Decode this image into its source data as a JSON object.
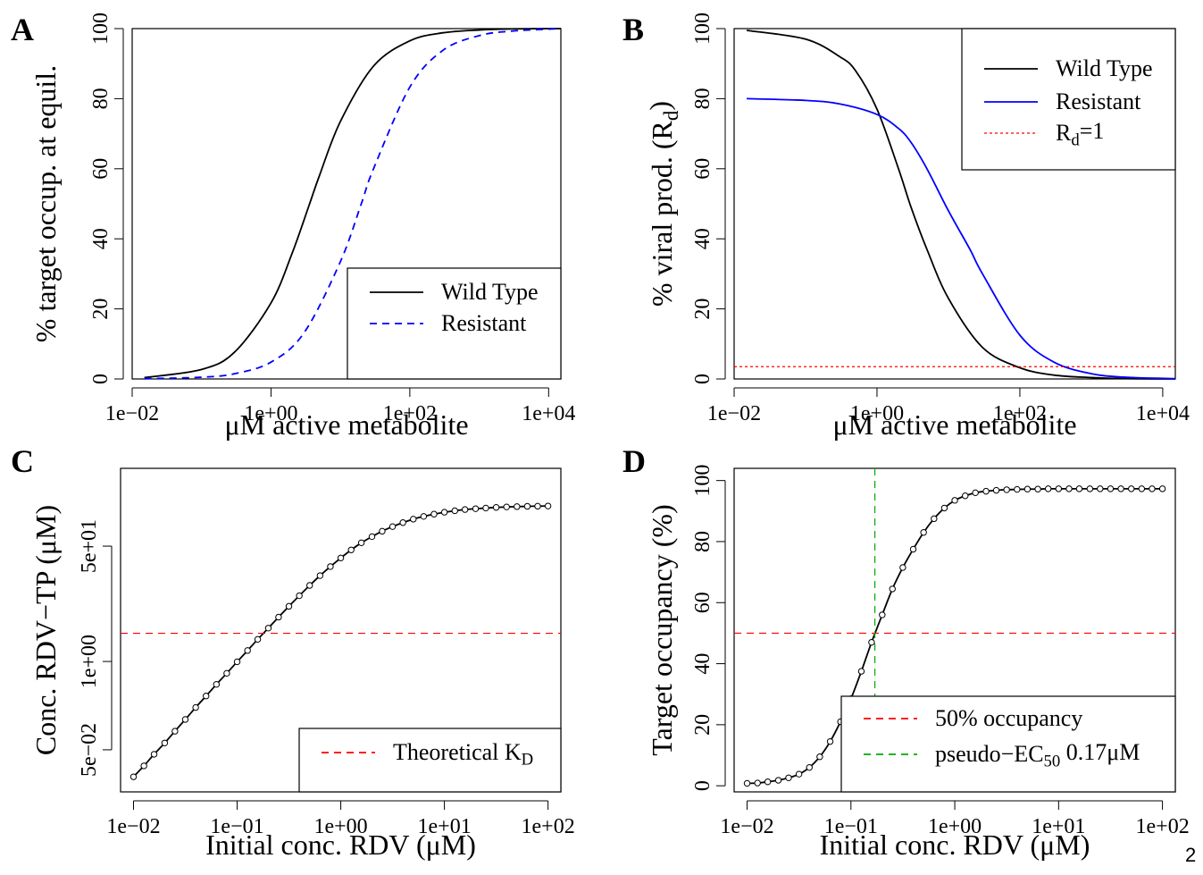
{
  "page_number": "2",
  "chart_data": [
    {
      "panel": "A",
      "type": "line",
      "xscale": "log",
      "xlabel": "μM active metabolite",
      "ylabel": "% target occup. at equil.",
      "xlim": [
        0.01,
        15000
      ],
      "ylim": [
        0,
        100
      ],
      "xticks": [
        0.01,
        1,
        100,
        10000
      ],
      "xtick_labels": [
        "1e−02",
        "1e+00",
        "1e+02",
        "1e+04"
      ],
      "yticks": [
        0,
        20,
        40,
        60,
        80,
        100
      ],
      "ytick_labels": [
        "0",
        "20",
        "40",
        "60",
        "80",
        "100"
      ],
      "legend_position": "bottom-right",
      "series": [
        {
          "name": "Wild Type",
          "color": "#000000",
          "dash": "solid",
          "x": [
            0.015,
            0.1,
            0.3,
            1,
            2,
            3.5,
            5,
            10,
            30,
            100,
            300,
            1000,
            3000,
            15000
          ],
          "y": [
            0.4,
            2.7,
            7.7,
            21.7,
            35.7,
            49.3,
            58.1,
            73.5,
            89.3,
            96.5,
            98.8,
            99.6,
            99.9,
            100
          ]
        },
        {
          "name": "Resistant",
          "color": "#0000ff",
          "dash": "dashed",
          "x": [
            0.015,
            0.1,
            0.3,
            1,
            3,
            10,
            20,
            30,
            100,
            300,
            1000,
            3000,
            15000
          ],
          "y": [
            0.07,
            0.5,
            1.5,
            4.8,
            13.2,
            33.5,
            50.0,
            60.0,
            83.3,
            93.8,
            98.0,
            99.3,
            100
          ]
        }
      ]
    },
    {
      "panel": "B",
      "type": "line",
      "xscale": "log",
      "xlabel": "μM active metabolite",
      "ylabel": "% viral prod. (Rd)",
      "ylabel_main": "% viral prod. (R",
      "ylabel_sub": "d",
      "ylabel_end": ")",
      "xlim": [
        0.01,
        15000
      ],
      "ylim": [
        0,
        100
      ],
      "xticks": [
        0.01,
        1,
        100,
        10000
      ],
      "xtick_labels": [
        "1e−02",
        "1e+00",
        "1e+02",
        "1e+04"
      ],
      "yticks": [
        0,
        20,
        40,
        60,
        80,
        100
      ],
      "ytick_labels": [
        "0",
        "20",
        "40",
        "60",
        "80",
        "100"
      ],
      "legend_position": "top-right",
      "series": [
        {
          "name": "Wild Type",
          "color": "#000000",
          "dash": "solid",
          "x": [
            0.015,
            0.1,
            0.3,
            0.5,
            1,
            2,
            3,
            5,
            10,
            30,
            100,
            300,
            1000,
            3000,
            15000
          ],
          "y": [
            99.5,
            97.0,
            92.0,
            88.0,
            77.0,
            60.0,
            49.0,
            37.0,
            23.0,
            9.0,
            3.2,
            1.1,
            0.4,
            0.1,
            0.0
          ]
        },
        {
          "name": "Resistant",
          "color": "#0000ff",
          "dash": "solid",
          "x": [
            0.015,
            0.1,
            0.3,
            1,
            2,
            3,
            5,
            10,
            20,
            30,
            100,
            300,
            1000,
            3000,
            15000
          ],
          "y": [
            80.0,
            79.5,
            78.5,
            75.5,
            71.5,
            67.5,
            60.0,
            48.0,
            37.0,
            30.0,
            12.5,
            4.8,
            1.5,
            0.5,
            0.1
          ]
        },
        {
          "name": "Rd=1",
          "name_main": "R",
          "name_sub": "d",
          "name_end": "=1",
          "color": "#ff0000",
          "dash": "dotted",
          "type": "hline",
          "y": 3.5
        }
      ]
    },
    {
      "panel": "C",
      "type": "line",
      "xscale": "log",
      "yscale": "log",
      "xlabel": "Initial conc. RDV (μM)",
      "ylabel": "Conc. RDV−TP (μM)",
      "xlim": [
        0.0075,
        133
      ],
      "ylim": [
        0.012,
        700
      ],
      "xticks": [
        0.01,
        0.1,
        1,
        10,
        100
      ],
      "xtick_labels": [
        "1e−02",
        "1e−01",
        "1e+00",
        "1e+01",
        "1e+02"
      ],
      "yticks": [
        0.05,
        1,
        50
      ],
      "ytick_labels": [
        "5e−02",
        "1e+00",
        "5e+01"
      ],
      "legend_position": "bottom-right",
      "series": [
        {
          "name": "RDV−TP",
          "color": "#000000",
          "dash": "solid",
          "markers": "open-circle",
          "x": [
            0.01,
            0.0126,
            0.0158,
            0.02,
            0.0251,
            0.0316,
            0.0398,
            0.0501,
            0.0631,
            0.0794,
            0.1,
            0.126,
            0.158,
            0.2,
            0.251,
            0.316,
            0.398,
            0.501,
            0.631,
            0.794,
            1,
            1.26,
            1.58,
            2,
            2.51,
            3.16,
            3.98,
            5.01,
            6.31,
            7.94,
            10,
            12.6,
            15.8,
            20,
            25.1,
            31.6,
            39.8,
            50.1,
            63.1,
            79.4,
            100
          ],
          "y": [
            0.02,
            0.029,
            0.043,
            0.063,
            0.094,
            0.14,
            0.21,
            0.31,
            0.46,
            0.67,
            0.99,
            1.45,
            2.12,
            3.1,
            4.5,
            6.5,
            9.3,
            13.2,
            18.4,
            25,
            33.5,
            44,
            56,
            69,
            83,
            97,
            111,
            125,
            137,
            148,
            158,
            166,
            173,
            178,
            182,
            186,
            189,
            191,
            193,
            194,
            195
          ]
        },
        {
          "name": "Theoretical KD",
          "name_main": "Theoretical K",
          "name_sub": "D",
          "color": "#ff0000",
          "dash": "dashed",
          "type": "hline",
          "y": 2.6
        }
      ]
    },
    {
      "panel": "D",
      "type": "line",
      "xscale": "log",
      "xlabel": "Initial conc. RDV (μM)",
      "ylabel": "Target occupancy (%)",
      "xlim": [
        0.0075,
        133
      ],
      "ylim": [
        -2,
        104
      ],
      "xticks": [
        0.01,
        0.1,
        1,
        10,
        100
      ],
      "xtick_labels": [
        "1e−02",
        "1e−01",
        "1e+00",
        "1e+01",
        "1e+02"
      ],
      "yticks": [
        0,
        20,
        40,
        60,
        80,
        100
      ],
      "ytick_labels": [
        "0",
        "20",
        "40",
        "60",
        "80",
        "100"
      ],
      "legend_position": "bottom-right",
      "series": [
        {
          "name": "Target occupancy",
          "color": "#000000",
          "dash": "solid",
          "markers": "open-circle",
          "x": [
            0.01,
            0.0126,
            0.0158,
            0.02,
            0.0251,
            0.0316,
            0.0398,
            0.0501,
            0.0631,
            0.0794,
            0.1,
            0.126,
            0.158,
            0.2,
            0.251,
            0.316,
            0.398,
            0.501,
            0.631,
            0.794,
            1,
            1.26,
            1.58,
            2,
            2.51,
            3.16,
            3.98,
            5.01,
            6.31,
            7.94,
            10,
            12.6,
            15.8,
            20,
            25.1,
            31.6,
            39.8,
            50.1,
            63.1,
            79.4,
            100
          ],
          "y": [
            0.8,
            0.9,
            1.3,
            1.8,
            2.6,
            3.8,
            6.0,
            9.5,
            14.5,
            21.0,
            28.5,
            37.5,
            47.0,
            56.0,
            64.5,
            71.5,
            77.5,
            83.0,
            87.5,
            91.0,
            93.5,
            95.0,
            96.0,
            96.5,
            96.8,
            97.0,
            97.1,
            97.2,
            97.2,
            97.3,
            97.3,
            97.3,
            97.3,
            97.3,
            97.3,
            97.3,
            97.3,
            97.3,
            97.3,
            97.3,
            97.3
          ]
        },
        {
          "name": "50% occupancy",
          "color": "#ff0000",
          "dash": "dashed",
          "type": "hline",
          "y": 50
        },
        {
          "name": "pseudo−EC50 0.17μM",
          "name_main": "pseudo−EC",
          "name_sub": "50",
          "name_end": " 0.17μM",
          "color": "#00aa00",
          "dash": "dashed",
          "type": "vline",
          "x": 0.17
        }
      ]
    }
  ]
}
